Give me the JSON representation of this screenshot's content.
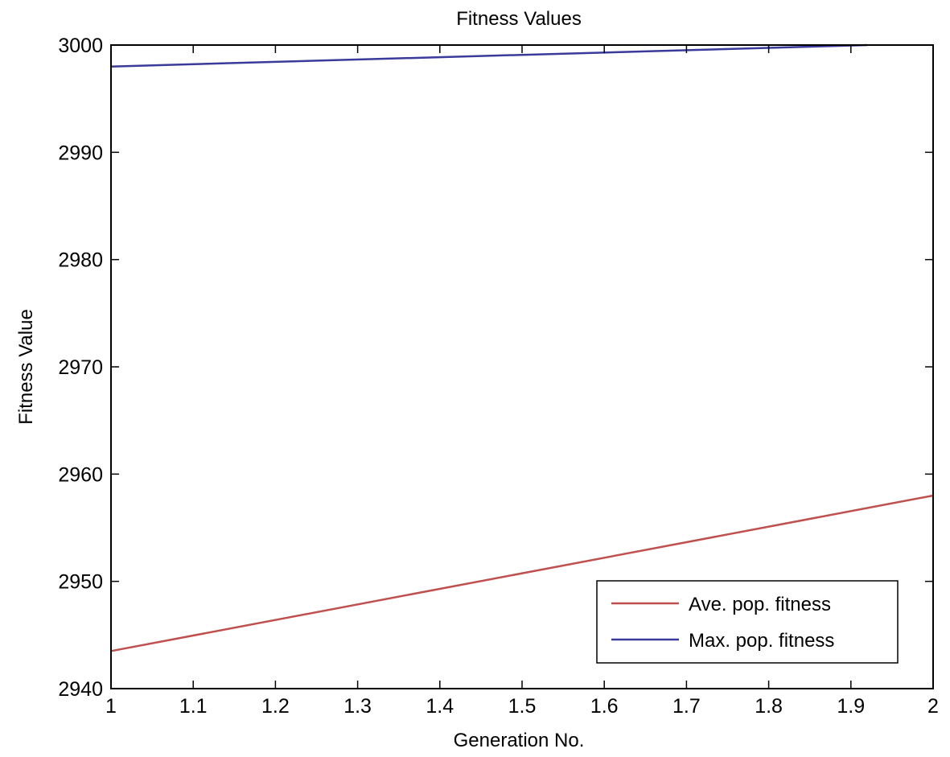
{
  "chart_data": {
    "type": "line",
    "title": "Fitness Values",
    "xlabel": "Generation No.",
    "ylabel": "Fitness Value",
    "xlim": [
      1,
      2
    ],
    "ylim": [
      2940,
      3000
    ],
    "xticks": [
      1,
      1.1,
      1.2,
      1.3,
      1.4,
      1.5,
      1.6,
      1.7,
      1.8,
      1.9,
      2
    ],
    "xtick_labels": [
      "1",
      "1.1",
      "1.2",
      "1.3",
      "1.4",
      "1.5",
      "1.6",
      "1.7",
      "1.8",
      "1.9",
      "2"
    ],
    "yticks": [
      2940,
      2950,
      2960,
      2970,
      2980,
      2990,
      3000
    ],
    "ytick_labels": [
      "2940",
      "2950",
      "2960",
      "2970",
      "2980",
      "2990",
      "3000"
    ],
    "grid": false,
    "legend_position": "bottom-right",
    "series": [
      {
        "name": "Ave. pop. fitness",
        "color": "#c0504d",
        "x": [
          1,
          2
        ],
        "y": [
          2943.5,
          2958
        ]
      },
      {
        "name": "Max. pop. fitness",
        "color": "#3a3a9a",
        "x": [
          1,
          1.92
        ],
        "y": [
          2998,
          3000
        ]
      }
    ]
  }
}
